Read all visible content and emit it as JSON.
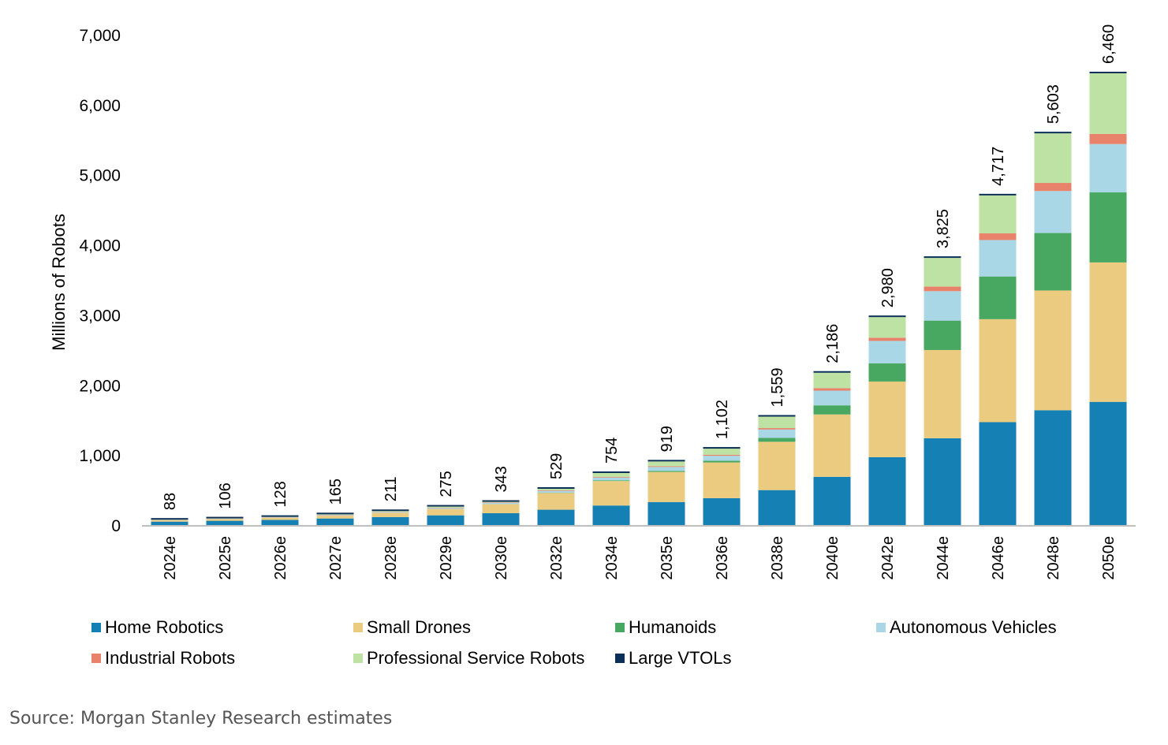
{
  "chart_data": {
    "type": "bar",
    "stacked": true,
    "title": "",
    "xlabel": "",
    "ylabel": "Millions of Robots",
    "ylim": [
      0,
      7000
    ],
    "yticks": [
      0,
      1000,
      2000,
      3000,
      4000,
      5000,
      6000,
      7000
    ],
    "ytick_labels": [
      "0",
      "1,000",
      "2,000",
      "3,000",
      "4,000",
      "5,000",
      "6,000",
      "7,000"
    ],
    "categories": [
      "2024e",
      "2025e",
      "2026e",
      "2027e",
      "2028e",
      "2029e",
      "2030e",
      "2032e",
      "2034e",
      "2035e",
      "2036e",
      "2038e",
      "2040e",
      "2042e",
      "2044e",
      "2046e",
      "2048e",
      "2050e"
    ],
    "totals": [
      88,
      106,
      128,
      165,
      211,
      275,
      343,
      529,
      754,
      919,
      1102,
      1559,
      2186,
      2980,
      3825,
      4717,
      5603,
      6460
    ],
    "total_labels": [
      "88",
      "106",
      "128",
      "165",
      "211",
      "275",
      "343",
      "529",
      "754",
      "919",
      "1,102",
      "1,559",
      "2,186",
      "2,980",
      "3,825",
      "4,717",
      "5,603",
      "6,460"
    ],
    "series": [
      {
        "name": "Home Robotics",
        "color": "#1480b4",
        "values": [
          60,
          72,
          85,
          105,
          125,
          150,
          180,
          230,
          290,
          340,
          395,
          510,
          700,
          980,
          1250,
          1480,
          1650,
          1770
        ]
      },
      {
        "name": "Small Drones",
        "color": "#eacb80",
        "values": [
          20,
          25,
          30,
          40,
          60,
          90,
          130,
          240,
          350,
          430,
          510,
          690,
          890,
          1080,
          1260,
          1470,
          1710,
          1990
        ]
      },
      {
        "name": "Humanoids",
        "color": "#48a862",
        "values": [
          0,
          0,
          0,
          0,
          0,
          0,
          0,
          5,
          10,
          15,
          25,
          55,
          130,
          260,
          420,
          610,
          820,
          1000
        ]
      },
      {
        "name": "Autonomous Vehicles",
        "color": "#a9d7e6",
        "values": [
          3,
          4,
          6,
          8,
          10,
          14,
          18,
          24,
          40,
          55,
          70,
          120,
          210,
          320,
          420,
          520,
          600,
          690
        ]
      },
      {
        "name": "Industrial Robots",
        "color": "#e8826a",
        "values": [
          2,
          2,
          3,
          4,
          5,
          6,
          7,
          8,
          10,
          12,
          14,
          20,
          35,
          45,
          65,
          95,
          115,
          145
        ]
      },
      {
        "name": "Professional Service Robots",
        "color": "#bde2a3",
        "values": [
          3,
          3,
          4,
          8,
          11,
          15,
          8,
          22,
          54,
          67,
          88,
          164,
          221,
          295,
          410,
          542,
          708,
          865
        ]
      },
      {
        "name": "Large VTOLs",
        "color": "#0b2f56",
        "values": [
          0,
          0,
          0,
          0,
          0,
          0,
          0,
          0,
          0,
          0,
          0,
          0,
          0,
          0,
          0,
          0,
          0,
          0
        ]
      }
    ],
    "legend_position": "bottom",
    "grid": false
  },
  "source": "Source: Morgan Stanley Research estimates"
}
